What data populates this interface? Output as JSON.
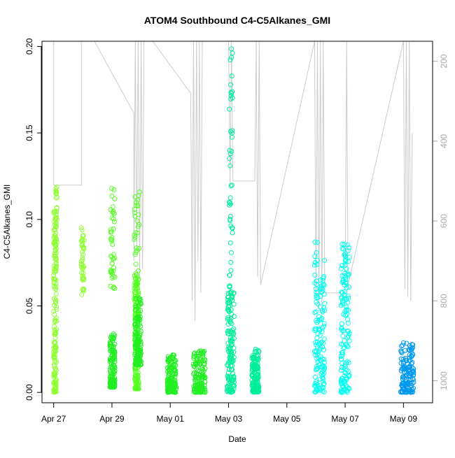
{
  "chart_data": {
    "type": "scatter",
    "title": "ATOM4 Southbound C4-C5Alkanes_GMI",
    "xlabel": "Date",
    "ylabel": "C4-C5Alkanes_GMI",
    "x_ticks": [
      "Apr 27",
      "Apr 29",
      "May 01",
      "May 03",
      "May 05",
      "May 07",
      "May 09"
    ],
    "y_ticks": [
      "0.00",
      "0.05",
      "0.10",
      "0.15",
      "0.20"
    ],
    "y_ticks_values": [
      0.0,
      0.05,
      0.1,
      0.15,
      0.2
    ],
    "y2_ticks": [
      "200",
      "400",
      "600",
      "800",
      "1000"
    ],
    "y2_ticks_values": [
      200,
      400,
      600,
      800,
      1000
    ],
    "xlim_days_from_apr27": [
      -0.4,
      13.0
    ],
    "ylim": [
      -0.006,
      0.203
    ],
    "y2lim": [
      1055,
      150
    ],
    "grid": false,
    "legend": "none",
    "series": [
      {
        "color": "#8fff33",
        "clusters": [
          {
            "x": 0.0,
            "x2": 0.1,
            "ymin": 0.0,
            "ymax": 0.106,
            "dense": true
          },
          {
            "x": 0.05,
            "x2": 0.12,
            "ymin": 0.07,
            "ymax": 0.119,
            "dense": false
          },
          {
            "x": 0.95,
            "x2": 1.05,
            "ymin": 0.056,
            "ymax": 0.096,
            "dense": false
          }
        ]
      },
      {
        "color": "#55ff22",
        "clusters": [
          {
            "x": 1.95,
            "x2": 2.1,
            "ymin": 0.06,
            "ymax": 0.118,
            "dense": false
          },
          {
            "x": 2.75,
            "x2": 2.95,
            "ymin": 0.045,
            "ymax": 0.117,
            "dense": false
          },
          {
            "x": 2.78,
            "x2": 2.92,
            "ymin": 0.002,
            "ymax": 0.07,
            "dense": true
          }
        ]
      },
      {
        "color": "#22ee22",
        "clusters": [
          {
            "x": 1.93,
            "x2": 2.1,
            "ymin": 0.003,
            "ymax": 0.035,
            "dense": true
          },
          {
            "x": 2.78,
            "x2": 3.0,
            "ymin": 0.016,
            "ymax": 0.055,
            "dense": true
          },
          {
            "x": 3.9,
            "x2": 4.2,
            "ymin": 0.0,
            "ymax": 0.022,
            "dense": true
          },
          {
            "x": 4.8,
            "x2": 5.2,
            "ymin": 0.0,
            "ymax": 0.024,
            "dense": true
          }
        ]
      },
      {
        "color": "#00ee99",
        "clusters": [
          {
            "x": 5.95,
            "x2": 6.2,
            "ymin": 0.0,
            "ymax": 0.06,
            "dense": true
          },
          {
            "x": 6.02,
            "x2": 6.14,
            "ymin": 0.06,
            "ymax": 0.2,
            "dense": false
          },
          {
            "x": 6.8,
            "x2": 7.05,
            "ymin": 0.0,
            "ymax": 0.025,
            "dense": true
          }
        ]
      },
      {
        "color": "#00ffee",
        "clusters": [
          {
            "x": 8.95,
            "x2": 9.3,
            "ymin": 0.0,
            "ymax": 0.089,
            "dense": true
          },
          {
            "x": 9.85,
            "x2": 10.15,
            "ymin": 0.0,
            "ymax": 0.086,
            "dense": true
          }
        ]
      },
      {
        "color": "#0099ee",
        "clusters": [
          {
            "x": 11.9,
            "x2": 12.35,
            "ymin": 0.0,
            "ymax": 0.029,
            "dense": true
          }
        ]
      }
    ],
    "altitude_profile": {
      "color": "#cccccc",
      "points": [
        [
          0.0,
          150
        ],
        [
          0.0,
          510
        ],
        [
          0.95,
          510
        ],
        [
          0.95,
          150
        ],
        [
          1.4,
          150
        ],
        [
          2.75,
          330
        ],
        [
          2.75,
          700
        ],
        [
          2.8,
          150
        ],
        [
          2.85,
          680
        ],
        [
          2.9,
          150
        ],
        [
          2.95,
          740
        ],
        [
          3.0,
          150
        ],
        [
          3.05,
          720
        ],
        [
          3.1,
          150
        ],
        [
          3.4,
          150
        ],
        [
          4.7,
          280
        ],
        [
          4.75,
          800
        ],
        [
          4.8,
          150
        ],
        [
          4.85,
          850
        ],
        [
          4.9,
          150
        ],
        [
          4.95,
          700
        ],
        [
          5.0,
          150
        ],
        [
          5.05,
          780
        ],
        [
          5.1,
          150
        ],
        [
          6.0,
          150
        ],
        [
          6.05,
          510
        ],
        [
          6.1,
          150
        ],
        [
          6.15,
          500
        ],
        [
          6.9,
          500
        ],
        [
          6.95,
          150
        ],
        [
          7.0,
          740
        ],
        [
          7.05,
          150
        ],
        [
          7.1,
          760
        ],
        [
          8.95,
          150
        ],
        [
          9.0,
          800
        ],
        [
          9.05,
          150
        ],
        [
          9.1,
          820
        ],
        [
          9.15,
          150
        ],
        [
          9.2,
          840
        ],
        [
          9.25,
          150
        ],
        [
          9.3,
          780
        ],
        [
          10.0,
          780
        ],
        [
          10.05,
          150
        ],
        [
          10.1,
          760
        ],
        [
          12.0,
          150
        ],
        [
          12.05,
          770
        ],
        [
          12.1,
          150
        ],
        [
          12.15,
          790
        ],
        [
          12.2,
          150
        ],
        [
          12.25,
          800
        ],
        [
          12.3,
          380
        ]
      ]
    }
  }
}
